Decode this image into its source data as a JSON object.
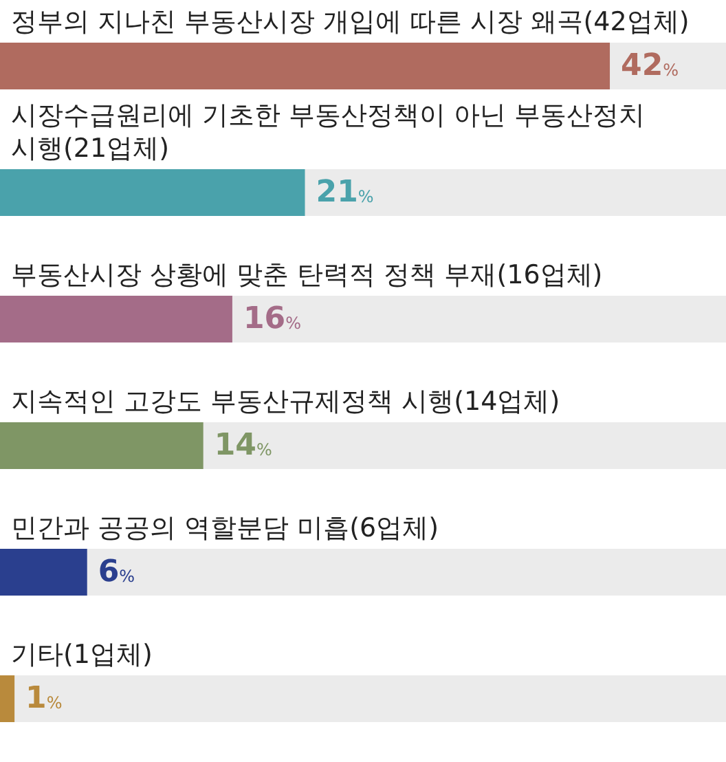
{
  "chart_data": {
    "type": "bar",
    "orientation": "horizontal",
    "categories": [
      "정부의 지나친 부동산시장 개입에 따른 시장 왜곡(42업체)",
      "시장수급원리에 기초한 부동산정책이 아닌 부동산정치\n시행(21업체)",
      "부동산시장 상황에 맞춘 탄력적 정책 부재(16업체)",
      "지속적인 고강도 부동산규제정책 시행(14업체)",
      "민간과 공공의 역할분담 미흡(6업체)",
      "기타(1업체)"
    ],
    "values": [
      42,
      21,
      16,
      14,
      6,
      1
    ],
    "colors": [
      "#b06b5f",
      "#4aa2ab",
      "#a46c88",
      "#7f9665",
      "#2a3f8e",
      "#b98a3c"
    ],
    "value_labels": [
      "42%",
      "21%",
      "16%",
      "14%",
      "6%",
      "1%"
    ],
    "xlim": [
      0,
      50
    ]
  }
}
